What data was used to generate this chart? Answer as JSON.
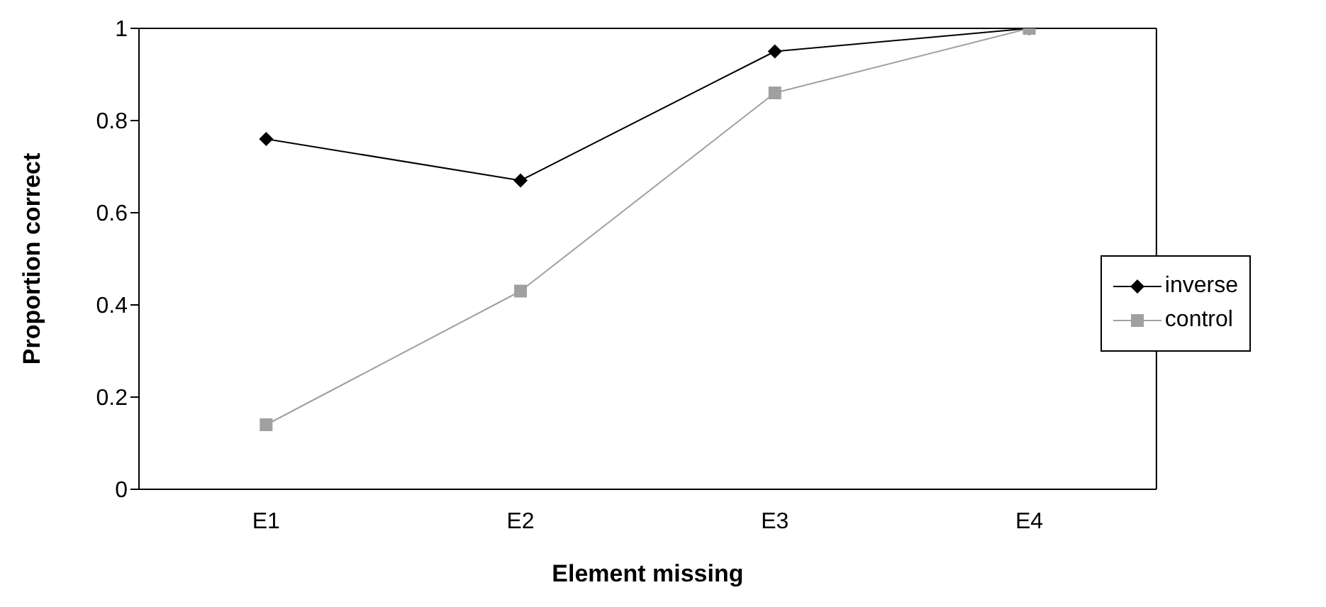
{
  "chart_data": {
    "type": "line",
    "xlabel": "Element missing",
    "ylabel": "Proportion correct",
    "categories": [
      "E1",
      "E2",
      "E3",
      "E4"
    ],
    "series": [
      {
        "name": "inverse",
        "color": "#000000",
        "values": [
          0.76,
          0.67,
          0.95,
          1
        ],
        "marker": "diamond"
      },
      {
        "name": "control",
        "color": "#a0a0a0",
        "values": [
          0.14,
          0.43,
          0.86,
          1
        ],
        "marker": "square"
      }
    ],
    "ylim": [
      0,
      1
    ],
    "yticks": [
      0,
      0.2,
      0.4,
      0.6,
      0.8,
      1
    ],
    "grid": false,
    "legend": "right",
    "line_style": "solid"
  }
}
